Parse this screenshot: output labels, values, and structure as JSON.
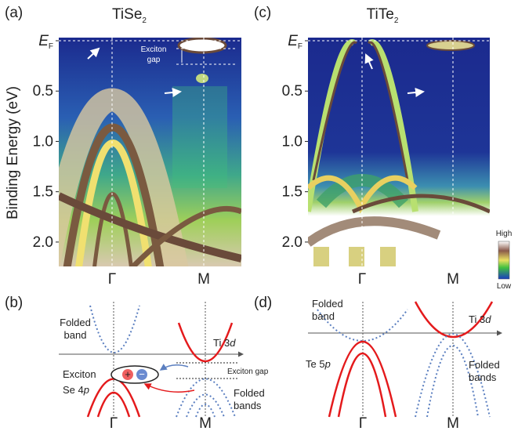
{
  "figure": {
    "y_axis_label": "Binding Energy (eV)",
    "ylim": [
      0,
      2.25
    ],
    "yticks": [
      {
        "value": 0,
        "label": "E",
        "label_sub": "F"
      },
      {
        "value": 0.5,
        "label": "0.5"
      },
      {
        "value": 1,
        "label": "1.0"
      },
      {
        "value": 1.5,
        "label": "1.5"
      },
      {
        "value": 2,
        "label": "2.0"
      }
    ],
    "panels": [
      {
        "label": "(a)",
        "title": "TiSe",
        "title_sub": "2",
        "x_labels": [
          "Γ",
          "M"
        ],
        "exciton_gap": [
          "Exciton",
          "gap"
        ]
      },
      {
        "label": "(c)",
        "title": "TiTe",
        "title_sub": "2",
        "x_labels": [
          "Γ",
          "M"
        ]
      }
    ],
    "colorbar": {
      "high": "High",
      "low": "Low"
    },
    "panel_b": {
      "label": "(b)",
      "folded_band": [
        "Folded",
        "band"
      ],
      "ti": "Ti 3",
      "ti_orbital": "d",
      "exciton": "Exciton",
      "exciton_gap": "Exciton gap",
      "se": "Se 4",
      "se_orbital": "p",
      "plus": "+",
      "minus": "−",
      "folded_bands": [
        "Folded",
        "bands"
      ],
      "x_labels": [
        "Γ",
        "M"
      ]
    },
    "panel_d": {
      "label": "(d)",
      "folded_band": [
        "Folded",
        "band"
      ],
      "ti": "Ti 3",
      "ti_orbital": "d",
      "te": "Te 5",
      "te_orbital": "p",
      "folded_bands": [
        "Folded",
        "bands"
      ],
      "x_labels": [
        "Γ",
        "M"
      ]
    }
  }
}
